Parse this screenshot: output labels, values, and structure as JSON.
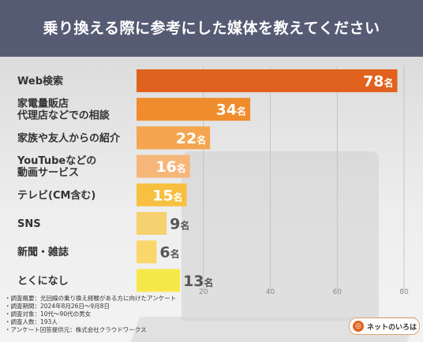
{
  "header": {
    "title": "乗り換える際に参考にした媒体を教えてください"
  },
  "chart_data": {
    "type": "bar",
    "orientation": "horizontal",
    "categories": [
      [
        "Web検索"
      ],
      [
        "家電量販店",
        "代理店などでの相談"
      ],
      [
        "家族や友人からの紹介"
      ],
      [
        "YouTubeなどの",
        "動画サービス"
      ],
      [
        "テレビ(CM含む)"
      ],
      [
        "SNS"
      ],
      [
        "新聞・雑誌"
      ],
      [
        "とくになし"
      ]
    ],
    "values": [
      78,
      34,
      22,
      16,
      15,
      9,
      6,
      13
    ],
    "value_labels": [
      "78",
      "34",
      "22",
      "16",
      "15",
      "9",
      "6",
      "13"
    ],
    "unit": "名",
    "xlim": [
      0,
      80
    ],
    "xticks": [
      20,
      40,
      60,
      80
    ],
    "bar_colors": [
      "#e0621e",
      "#f08c2c",
      "#f5a550",
      "#f6b67a",
      "#f8c040",
      "#f7d070",
      "#f9d76a",
      "#f7e84a"
    ],
    "grid": true
  },
  "survey": [
    "・調査概要：光回線の乗り換え経験がある方に向けたアンケート",
    "・調査期間：2024年8月26日～9月8日",
    "・調査対象：10代～90代の男女",
    "・調査人数：193人",
    "・アンケート回答提供元：株式会社クラウドワークス"
  ],
  "logo": {
    "icon": "compass-icon",
    "text": "ネットのいろは"
  }
}
